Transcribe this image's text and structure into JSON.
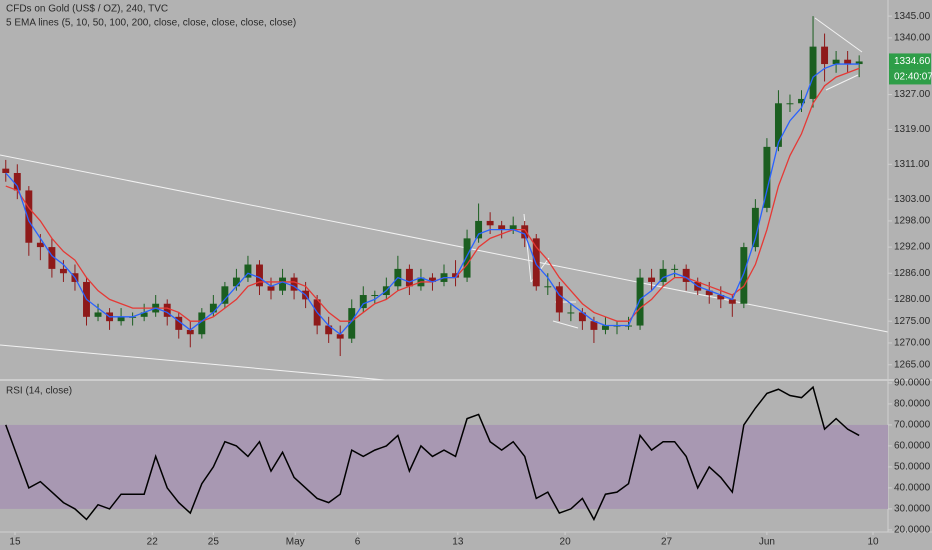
{
  "chart_data": [
    {
      "type": "candlestick",
      "title": "CFDs on Gold (US$ / OZ), 240, TVC",
      "subtitle": "5 EMA lines (5, 10, 50, 100, 200, close, close, close, close, close)",
      "x": [
        0,
        1,
        2,
        3,
        4,
        5,
        6,
        7,
        8,
        9,
        10,
        11,
        12,
        13,
        14,
        15,
        16,
        17,
        18,
        19,
        20,
        21,
        22,
        23,
        24,
        25,
        26,
        27,
        28,
        29,
        30,
        31,
        32,
        33,
        34,
        35,
        36,
        37,
        38,
        39,
        40,
        41,
        42,
        43,
        44,
        45,
        46,
        47,
        48,
        49,
        50,
        51,
        52,
        53,
        54,
        55,
        56,
        57,
        58,
        59,
        60,
        61,
        62,
        63,
        64,
        65,
        66,
        67,
        68,
        69,
        70,
        71,
        72,
        73,
        74
      ],
      "open": [
        1310,
        1309,
        1305,
        1293,
        1292,
        1287,
        1286,
        1284,
        1276,
        1277,
        1275,
        1276,
        1276,
        1277,
        1279,
        1276,
        1273,
        1272,
        1277,
        1279,
        1283,
        1285,
        1288,
        1283,
        1282,
        1285,
        1282,
        1280,
        1274,
        1272,
        1271,
        1278,
        1281,
        1281,
        1283,
        1287,
        1283,
        1285,
        1284,
        1286,
        1285,
        1294,
        1298,
        1297,
        1296,
        1297,
        1294,
        1283,
        1283,
        1277,
        1277,
        1275,
        1273,
        1274,
        1274,
        1274,
        1285,
        1284,
        1287,
        1287,
        1284,
        1282,
        1281,
        1280,
        1279,
        1292,
        1301,
        1315,
        1325,
        1325,
        1326,
        1338,
        1334,
        1335,
        1334
      ],
      "high": [
        1312,
        1311,
        1306,
        1295,
        1294,
        1289,
        1288,
        1285,
        1279,
        1278,
        1278,
        1277,
        1279,
        1281,
        1280,
        1277,
        1275,
        1278,
        1281,
        1284,
        1287,
        1290,
        1289,
        1285,
        1287,
        1286,
        1284,
        1281,
        1276,
        1274,
        1280,
        1283,
        1282,
        1285,
        1290,
        1288,
        1287,
        1286,
        1288,
        1289,
        1296,
        1302,
        1300,
        1298,
        1299,
        1298,
        1295,
        1286,
        1284,
        1279,
        1278,
        1276,
        1276,
        1275,
        1276,
        1287,
        1287,
        1289,
        1288,
        1288,
        1285,
        1284,
        1283,
        1281,
        1293,
        1303,
        1317,
        1328,
        1327,
        1328,
        1345,
        1341,
        1337,
        1337,
        1336
      ],
      "low": [
        1307,
        1303,
        1290,
        1289,
        1285,
        1284,
        1282,
        1274,
        1275,
        1273,
        1274,
        1274,
        1275,
        1276,
        1274,
        1271,
        1269,
        1271,
        1276,
        1278,
        1282,
        1284,
        1281,
        1280,
        1281,
        1280,
        1278,
        1272,
        1270,
        1267,
        1270,
        1277,
        1279,
        1280,
        1282,
        1281,
        1282,
        1282,
        1283,
        1283,
        1284,
        1293,
        1295,
        1294,
        1295,
        1292,
        1282,
        1281,
        1275,
        1275,
        1273,
        1270,
        1272,
        1272,
        1273,
        1273,
        1282,
        1283,
        1285,
        1282,
        1281,
        1279,
        1278,
        1276,
        1278,
        1291,
        1300,
        1314,
        1323,
        1323,
        1324,
        1330,
        1332,
        1332,
        1331
      ],
      "close": [
        1309,
        1305,
        1293,
        1292,
        1287,
        1286,
        1284,
        1276,
        1277,
        1275,
        1276,
        1276,
        1277,
        1279,
        1276,
        1273,
        1272,
        1277,
        1279,
        1283,
        1285,
        1288,
        1283,
        1282,
        1285,
        1282,
        1280,
        1274,
        1272,
        1271,
        1278,
        1281,
        1281,
        1283,
        1287,
        1283,
        1285,
        1284,
        1286,
        1285,
        1294,
        1298,
        1297,
        1296,
        1297,
        1294,
        1283,
        1283,
        1277,
        1277,
        1275,
        1273,
        1274,
        1274,
        1274,
        1285,
        1284,
        1287,
        1287,
        1284,
        1282,
        1281,
        1280,
        1279,
        1292,
        1301,
        1315,
        1325,
        1325,
        1326,
        1338,
        1334,
        1335,
        1334,
        1334.6
      ],
      "up_color": "#1b5e20",
      "down_color": "#8e1a1a",
      "series": [
        {
          "color": "#e53935",
          "values": [
            1306,
            1305,
            1301,
            1298,
            1294,
            1291,
            1289,
            1285,
            1282,
            1280,
            1279,
            1278,
            1278,
            1278,
            1278,
            1277,
            1275,
            1275,
            1276,
            1278,
            1280,
            1283,
            1284,
            1284,
            1284,
            1284,
            1283,
            1280,
            1277,
            1275,
            1275,
            1277,
            1279,
            1280,
            1282,
            1283,
            1284,
            1284,
            1285,
            1285,
            1288,
            1292,
            1294,
            1295,
            1296,
            1296,
            1292,
            1289,
            1285,
            1282,
            1279,
            1277,
            1276,
            1275,
            1275,
            1278,
            1280,
            1283,
            1285,
            1285,
            1284,
            1283,
            1282,
            1281,
            1283,
            1288,
            1296,
            1306,
            1313,
            1318,
            1325,
            1329,
            1331,
            1332,
            1333
          ]
        },
        {
          "color": "#2962ff",
          "values": [
            1309,
            1306,
            1298,
            1294,
            1290,
            1288,
            1285,
            1280,
            1278,
            1276,
            1276,
            1276,
            1277,
            1278,
            1277,
            1275,
            1273,
            1275,
            1277,
            1280,
            1283,
            1286,
            1285,
            1283,
            1284,
            1283,
            1281,
            1277,
            1274,
            1272,
            1275,
            1279,
            1280,
            1282,
            1285,
            1284,
            1285,
            1284,
            1285,
            1285,
            1290,
            1295,
            1296,
            1296,
            1296,
            1295,
            1288,
            1285,
            1281,
            1279,
            1277,
            1275,
            1274,
            1274,
            1274,
            1280,
            1282,
            1285,
            1286,
            1285,
            1283,
            1282,
            1281,
            1280,
            1286,
            1294,
            1305,
            1316,
            1321,
            1324,
            1331,
            1333,
            1334,
            1334,
            1334
          ]
        }
      ],
      "xlim": [
        -0.5,
        76.5
      ],
      "ylim": [
        1261.5,
        1348.7
      ],
      "yticks": [
        {
          "value": 1345,
          "label": "1345.00"
        },
        {
          "value": 1340,
          "label": "1340.00"
        },
        {
          "value": 1327,
          "label": "1327.00"
        },
        {
          "value": 1319,
          "label": "1319.00"
        },
        {
          "value": 1311,
          "label": "1311.00"
        },
        {
          "value": 1303,
          "label": "1303.00"
        },
        {
          "value": 1298,
          "label": "1298.00"
        },
        {
          "value": 1292,
          "label": "1292.00"
        },
        {
          "value": 1286,
          "label": "1286.00"
        },
        {
          "value": 1280,
          "label": "1280.00"
        },
        {
          "value": 1275,
          "label": "1275.00"
        },
        {
          "value": 1270,
          "label": "1270.00"
        },
        {
          "value": 1265,
          "label": "1265.00"
        }
      ],
      "last_price": {
        "value": 1334.6,
        "label": "1334.60"
      },
      "countdown": "02:40:07",
      "last_color": "#2e9e48"
    },
    {
      "type": "line",
      "title": "RSI (14, close)",
      "x": [
        0,
        1,
        2,
        3,
        4,
        5,
        6,
        7,
        8,
        9,
        10,
        11,
        12,
        13,
        14,
        15,
        16,
        17,
        18,
        19,
        20,
        21,
        22,
        23,
        24,
        25,
        26,
        27,
        28,
        29,
        30,
        31,
        32,
        33,
        34,
        35,
        36,
        37,
        38,
        39,
        40,
        41,
        42,
        43,
        44,
        45,
        46,
        47,
        48,
        49,
        50,
        51,
        52,
        53,
        54,
        55,
        56,
        57,
        58,
        59,
        60,
        61,
        62,
        63,
        64,
        65,
        66,
        67,
        68,
        69,
        70,
        71,
        72,
        73,
        74
      ],
      "values": [
        70,
        55,
        40,
        43,
        38,
        33,
        30,
        25,
        32,
        30,
        37,
        37,
        37,
        55,
        40,
        33,
        28,
        42,
        50,
        62,
        60,
        55,
        62,
        48,
        57,
        45,
        40,
        35,
        33,
        37,
        58,
        55,
        58,
        60,
        65,
        48,
        60,
        55,
        58,
        55,
        73,
        75,
        62,
        58,
        62,
        55,
        35,
        38,
        28,
        30,
        35,
        25,
        37,
        38,
        42,
        65,
        58,
        62,
        62,
        55,
        40,
        50,
        45,
        38,
        70,
        78,
        85,
        87,
        84,
        83,
        88,
        68,
        73,
        68,
        65
      ],
      "color": "#000000",
      "band": [
        30,
        70
      ],
      "band_color": "#a898b2",
      "xlim": [
        -0.5,
        76.5
      ],
      "ylim": [
        19,
        91.4
      ],
      "yticks": [
        {
          "value": 90,
          "label": "90.0000"
        },
        {
          "value": 80,
          "label": "80.0000"
        },
        {
          "value": 70,
          "label": "70.0000"
        },
        {
          "value": 60,
          "label": "60.0000"
        },
        {
          "value": 50,
          "label": "50.0000"
        },
        {
          "value": 40,
          "label": "40.0000"
        },
        {
          "value": 30,
          "label": "30.0000"
        },
        {
          "value": 20,
          "label": "20.0000"
        }
      ],
      "xticks": [
        {
          "value": 0.8,
          "label": "15"
        },
        {
          "value": 12.7,
          "label": "22"
        },
        {
          "value": 18,
          "label": "25"
        },
        {
          "value": 25.1,
          "label": "May"
        },
        {
          "value": 30.5,
          "label": "6"
        },
        {
          "value": 39.2,
          "label": "13"
        },
        {
          "value": 48.5,
          "label": "20"
        },
        {
          "value": 57.3,
          "label": "27"
        },
        {
          "value": 66,
          "label": "Jun"
        },
        {
          "value": 75.2,
          "label": "10"
        }
      ]
    }
  ]
}
